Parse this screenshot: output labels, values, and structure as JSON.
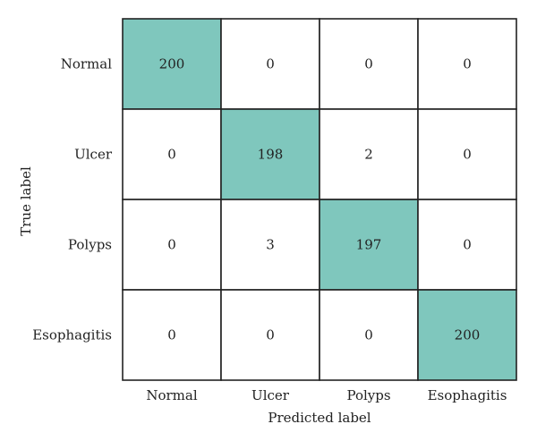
{
  "chart_data": {
    "type": "heatmap",
    "title": "",
    "xlabel": "Predicted label",
    "ylabel": "True label",
    "x_categories": [
      "Normal",
      "Ulcer",
      "Polyps",
      "Esophagitis"
    ],
    "y_categories": [
      "Normal",
      "Ulcer",
      "Polyps",
      "Esophagitis"
    ],
    "matrix": [
      [
        200,
        0,
        0,
        0
      ],
      [
        0,
        198,
        2,
        0
      ],
      [
        0,
        3,
        197,
        0
      ],
      [
        0,
        0,
        0,
        200
      ]
    ],
    "highlight_color": "#7fc7bd",
    "background_color": "#ffffff",
    "grid_color": "#222222"
  }
}
